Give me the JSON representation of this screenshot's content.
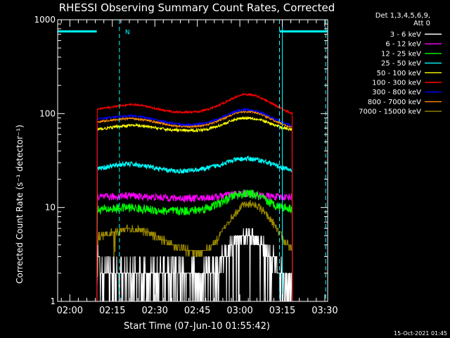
{
  "chart_data": {
    "type": "line",
    "title": "RHESSI Observing Summary Count Rates, Corrected",
    "ylabel": "Corrected Count Rate (s⁻¹ detector⁻¹)",
    "xlabel": "Start Time (07-Jun-10 01:55:42)",
    "footer_date": "15-Oct-2021 01:45",
    "y_scale": "log",
    "ylim": [
      1,
      1000
    ],
    "y_ticks": [
      {
        "value": 1,
        "label": "1"
      },
      {
        "value": 10,
        "label": "10"
      },
      {
        "value": 100,
        "label": "100"
      },
      {
        "value": 1000,
        "label": "1000"
      }
    ],
    "x_range_minutes": [
      115.7,
      211.0
    ],
    "x_ticks": [
      {
        "value": 120,
        "label": "02:00"
      },
      {
        "value": 135,
        "label": "02:15"
      },
      {
        "value": 150,
        "label": "02:30"
      },
      {
        "value": 165,
        "label": "02:45"
      },
      {
        "value": 180,
        "label": "03:00"
      },
      {
        "value": 195,
        "label": "03:15"
      },
      {
        "value": 210,
        "label": "03:30"
      }
    ],
    "legend": {
      "header": [
        "Det 1,3,4,5,6,9,",
        "Att 0"
      ],
      "entries": [
        {
          "label": "3 - 6 keV",
          "color": "#ffffff"
        },
        {
          "label": "6 - 12 keV",
          "color": "#ff00ff"
        },
        {
          "label": "12 - 25 keV",
          "color": "#00ff00"
        },
        {
          "label": "25 - 50 keV",
          "color": "#00ffff"
        },
        {
          "label": "50 - 100 keV",
          "color": "#ffff00"
        },
        {
          "label": "100 - 300 keV",
          "color": "#ff0000"
        },
        {
          "label": "300 - 800 keV",
          "color": "#0000ff"
        },
        {
          "label": "800 - 7000 keV",
          "color": "#ff8c00"
        },
        {
          "label": "7000 - 15000 keV",
          "color": "#9a8800"
        }
      ]
    },
    "markers": {
      "night_label": "N",
      "night_level": 750,
      "night_color": "#00ffff",
      "night_intervals": [
        [
          115.7,
          129.5
        ],
        [
          194.0,
          211.0
        ]
      ],
      "dashed_lines": [
        137.5,
        194.0,
        210.3
      ],
      "solid_lines": [
        115.7,
        195.0
      ]
    },
    "data_window": [
      129.5,
      198.5
    ],
    "series": [
      {
        "name": "3 - 6 keV",
        "color": "#ffffff",
        "x": [
          130,
          133,
          136,
          139,
          142,
          145,
          148,
          151,
          154,
          157,
          160,
          163,
          166,
          169,
          172,
          175,
          178,
          181,
          184,
          187,
          190,
          193,
          196,
          198
        ],
        "y": [
          2.8,
          2.3,
          1.9,
          2.0,
          2.1,
          2.0,
          2.0,
          1.9,
          2.0,
          2.0,
          2.0,
          1.9,
          1.8,
          2.1,
          2.5,
          3.2,
          4.3,
          5.0,
          5.0,
          4.3,
          3.4,
          2.5,
          1.6,
          1.3
        ]
      },
      {
        "name": "6 - 12 keV",
        "color": "#ff00ff",
        "x": [
          130,
          133,
          136,
          139,
          142,
          145,
          148,
          151,
          154,
          157,
          160,
          163,
          166,
          169,
          172,
          175,
          178,
          181,
          184,
          187,
          190,
          193,
          196,
          198
        ],
        "y": [
          13,
          13,
          13,
          13.5,
          13.5,
          13,
          13,
          12.8,
          12.8,
          12.6,
          12.6,
          12.6,
          12.6,
          12.8,
          13,
          13.5,
          14,
          14,
          14,
          13.5,
          13.2,
          13,
          13,
          13
        ]
      },
      {
        "name": "12 - 25 keV",
        "color": "#00ff00",
        "x": [
          130,
          133,
          136,
          139,
          142,
          145,
          148,
          151,
          154,
          157,
          160,
          163,
          166,
          169,
          172,
          175,
          178,
          181,
          184,
          187,
          190,
          193,
          196,
          198
        ],
        "y": [
          9.5,
          9.6,
          9.7,
          10,
          10,
          9.7,
          9.5,
          9.3,
          9.2,
          9.2,
          9.2,
          9.3,
          9.5,
          10,
          10.8,
          12,
          13.5,
          14,
          14,
          13,
          11.5,
          10.5,
          10,
          9.8
        ]
      },
      {
        "name": "25 - 50 keV",
        "color": "#00ffff",
        "x": [
          130,
          133,
          136,
          139,
          142,
          145,
          148,
          151,
          154,
          157,
          160,
          163,
          166,
          169,
          172,
          175,
          178,
          181,
          184,
          187,
          190,
          193,
          196,
          198
        ],
        "y": [
          26,
          27,
          28,
          29,
          29,
          28,
          27,
          26,
          25,
          24.5,
          24.5,
          25,
          25.5,
          26.5,
          28,
          30,
          32,
          33,
          33,
          32,
          30,
          28,
          26,
          25
        ]
      },
      {
        "name": "50 - 100 keV",
        "color": "#ffff00",
        "x": [
          130,
          133,
          136,
          139,
          142,
          145,
          148,
          151,
          154,
          157,
          160,
          163,
          166,
          169,
          172,
          175,
          178,
          181,
          184,
          187,
          190,
          193,
          196,
          198
        ],
        "y": [
          68,
          70,
          72,
          74,
          75,
          74,
          72,
          70,
          68,
          67,
          66,
          66,
          67,
          69,
          73,
          79,
          86,
          90,
          90,
          86,
          80,
          74,
          70,
          68
        ]
      },
      {
        "name": "100 - 300 keV",
        "color": "#ff0000",
        "x": [
          130,
          133,
          136,
          139,
          142,
          145,
          148,
          151,
          154,
          157,
          160,
          163,
          166,
          169,
          172,
          175,
          178,
          181,
          184,
          187,
          190,
          193,
          196,
          198
        ],
        "y": [
          112,
          115,
          119,
          123,
          125,
          123,
          118,
          112,
          107,
          104,
          103,
          104,
          106,
          111,
          120,
          133,
          148,
          160,
          160,
          150,
          135,
          120,
          108,
          102
        ]
      },
      {
        "name": "300 - 800 keV",
        "color": "#0000ff",
        "x": [
          130,
          133,
          136,
          139,
          142,
          145,
          148,
          151,
          154,
          157,
          160,
          163,
          166,
          169,
          172,
          175,
          178,
          181,
          184,
          187,
          190,
          193,
          196,
          198
        ],
        "y": [
          88,
          90,
          92,
          94,
          95,
          93,
          89,
          85,
          81,
          78,
          76,
          76,
          78,
          81,
          87,
          95,
          104,
          110,
          110,
          104,
          95,
          86,
          79,
          75
        ]
      },
      {
        "name": "800 - 7000 keV",
        "color": "#ff8c00",
        "x": [
          130,
          133,
          136,
          139,
          142,
          145,
          148,
          151,
          154,
          157,
          160,
          163,
          166,
          169,
          172,
          175,
          178,
          181,
          184,
          187,
          190,
          193,
          196,
          198
        ],
        "y": [
          82,
          84,
          86,
          88,
          89,
          87,
          84,
          80,
          77,
          74,
          73,
          73,
          74,
          77,
          83,
          91,
          100,
          105,
          105,
          100,
          91,
          82,
          75,
          72
        ]
      },
      {
        "name": "7000 - 15000 keV",
        "color": "#9a8800",
        "x": [
          130,
          133,
          136,
          139,
          142,
          145,
          148,
          151,
          154,
          157,
          160,
          163,
          166,
          169,
          172,
          175,
          178,
          181,
          184,
          187,
          190,
          193,
          196,
          198
        ],
        "y": [
          5.0,
          5.2,
          5.5,
          5.8,
          5.9,
          5.7,
          5.3,
          4.8,
          4.3,
          3.9,
          3.6,
          3.4,
          3.3,
          3.7,
          4.6,
          6.3,
          8.5,
          10.5,
          11,
          10,
          8,
          6,
          4.3,
          3.6
        ]
      }
    ]
  }
}
